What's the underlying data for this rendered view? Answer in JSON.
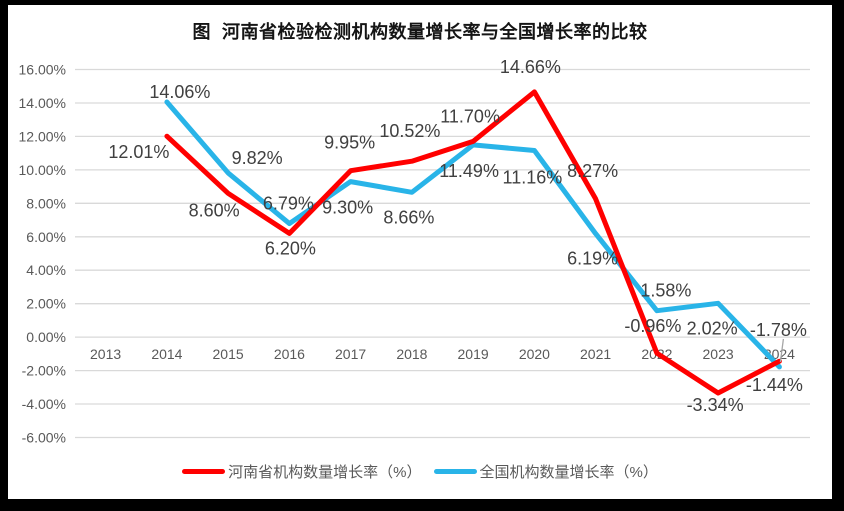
{
  "window": {
    "frame_color": "#000000",
    "card_color": "#ffffff"
  },
  "chart_data": {
    "type": "line",
    "title": "图  河南省检验检测机构数量增长率与全国增长率的比较",
    "categories": [
      "2013",
      "2014",
      "2015",
      "2016",
      "2017",
      "2018",
      "2019",
      "2020",
      "2021",
      "2022",
      "2023",
      "2024"
    ],
    "ylim": [
      -6,
      16
    ],
    "ytick_step": 2,
    "ytick_suffix": "%",
    "grid": true,
    "gridline_color": "#D9D9D9",
    "axis_label_color": "#595959",
    "data_label_color": "#404040",
    "legend_position": "bottom",
    "y_tick_labels": [
      "16.00%",
      "14.00%",
      "12.00%",
      "10.00%",
      "8.00%",
      "6.00%",
      "4.00%",
      "2.00%",
      "0.00%",
      "-2.00%",
      "-4.00%",
      "-6.00%"
    ],
    "series": [
      {
        "name": "河南省机构数量增长率（%）",
        "color": "#FF0000",
        "start_index": 1,
        "values": [
          12.01,
          8.6,
          6.2,
          9.95,
          10.52,
          11.7,
          14.66,
          8.27,
          -0.96,
          -3.34,
          -1.44
        ],
        "labels": [
          "12.01%",
          "8.60%",
          "6.20%",
          "9.95%",
          "10.52%",
          "11.70%",
          "14.66%",
          "8.27%",
          "-0.96%",
          "-3.34%",
          "-1.44%"
        ],
        "label_offsets": [
          [
            -28,
            16
          ],
          [
            -14,
            17
          ],
          [
            1,
            15
          ],
          [
            -1,
            -28
          ],
          [
            -2,
            -30
          ],
          [
            -3,
            -25
          ],
          [
            -4,
            -25
          ],
          [
            -3,
            -28
          ],
          [
            -4,
            -27
          ],
          [
            -3,
            12
          ],
          [
            -5,
            24
          ]
        ]
      },
      {
        "name": "全国机构数量增长率（%）",
        "color": "#29B4E8",
        "start_index": 1,
        "values": [
          14.06,
          9.82,
          6.79,
          9.3,
          8.66,
          11.49,
          11.16,
          6.19,
          1.58,
          2.02,
          -1.78
        ],
        "labels": [
          "14.06%",
          "9.82%",
          "6.79%",
          "9.30%",
          "8.66%",
          "11.49%",
          "11.16%",
          "6.19%",
          "1.58%",
          "2.02%",
          "-1.78%"
        ],
        "label_offsets": [
          [
            13,
            -10
          ],
          [
            29,
            -15
          ],
          [
            -1,
            -20
          ],
          [
            -3,
            26
          ],
          [
            -3,
            25
          ],
          [
            -4,
            26
          ],
          [
            -2,
            27
          ],
          [
            -3,
            25
          ],
          [
            9,
            -20
          ],
          [
            -6,
            25
          ],
          [
            -1,
            -37
          ]
        ],
        "leader": {
          "index": 10,
          "from_dx_dy": [
            4,
            -28
          ],
          "to_dx_dy": [
            1,
            -5
          ],
          "color": "#A6A6A6"
        }
      }
    ]
  }
}
